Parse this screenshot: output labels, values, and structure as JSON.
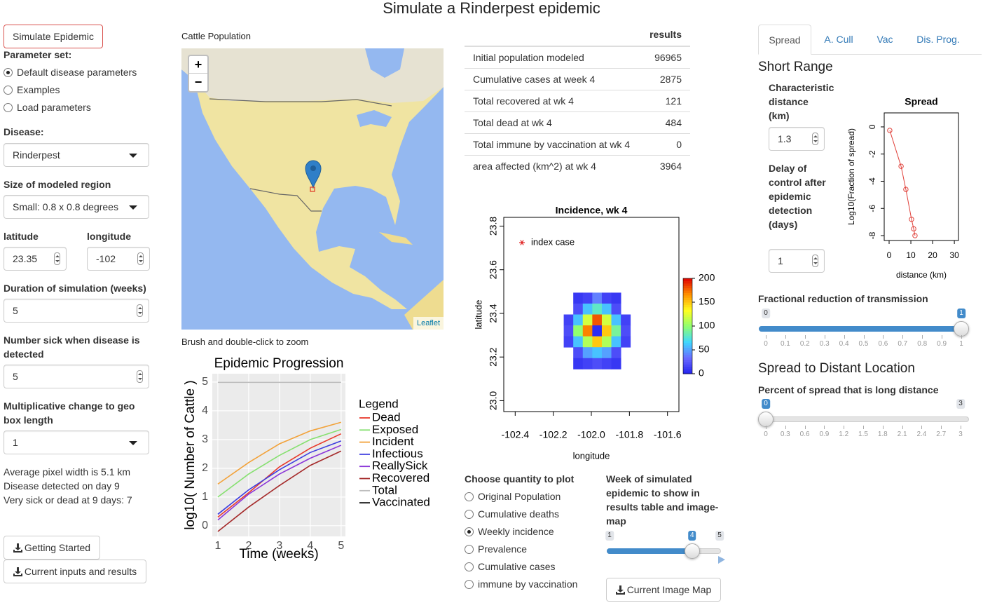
{
  "title": "Simulate a Rinderpest epidemic",
  "sidebar": {
    "simulate_button": "Simulate Epidemic",
    "parameter_set": {
      "label": "Parameter set:",
      "options": [
        "Default disease parameters",
        "Examples",
        "Load parameters"
      ],
      "selected": 0
    },
    "disease": {
      "label": "Disease:",
      "value": "Rinderpest"
    },
    "region_size": {
      "label": "Size of modeled region",
      "value": "Small: 0.8 x 0.8 degrees"
    },
    "latitude": {
      "label": "latitude",
      "value": 23.35
    },
    "longitude": {
      "label": "longitude",
      "value": -102
    },
    "duration": {
      "label": "Duration of simulation (weeks)",
      "value": 5
    },
    "number_sick": {
      "label": "Number sick when disease is detected",
      "value": 5
    },
    "geo_box": {
      "label": "Multiplicative change to geo box length",
      "value": "1"
    },
    "info": [
      "Average pixel width is 5.1 km",
      "Disease detected on day 9",
      "Very sick or dead at 9 days: 7"
    ],
    "buttons": [
      "Getting Started",
      "Current inputs and results"
    ]
  },
  "map": {
    "title": "Cattle Population",
    "zoom_in": "+",
    "zoom_out": "−",
    "attribution": "Leaflet",
    "hint": "Brush and double-click to zoom"
  },
  "results": {
    "header": "results",
    "rows": [
      {
        "label": "Initial population modeled",
        "value": 96965
      },
      {
        "label": "Cumulative cases at week 4",
        "value": 2875
      },
      {
        "label": "Total recovered at wk 4",
        "value": 121
      },
      {
        "label": "Total dead at wk 4",
        "value": 484
      },
      {
        "label": "Total immune by vaccination at wk 4",
        "value": 0
      },
      {
        "label": "area affected (km^2) at wk 4",
        "value": 3964
      }
    ]
  },
  "plot_controls": {
    "quantity": {
      "label": "Choose quantity to plot",
      "options": [
        "Original Population",
        "Cumulative deaths",
        "Weekly incidence",
        "Prevalence",
        "Cumulative cases",
        "immune by vaccination"
      ],
      "selected": 2
    },
    "week": {
      "label": "Week of simulated epidemic to show in results table and image-map",
      "min": 1,
      "max": 5,
      "value": 4
    },
    "button": "Current Image Map"
  },
  "settings_panel": {
    "tabs": [
      "Spread",
      "A. Cull",
      "Vac",
      "Dis. Prog."
    ],
    "active_tab": 0,
    "short_range": "Short Range",
    "characteristic_distance": {
      "label": "Characteristic distance (km)",
      "value": 1.3
    },
    "delay": {
      "label": "Delay of control after epidemic detection (days)",
      "value": 1
    },
    "fractional_reduction": {
      "label": "Fractional reduction of transmission",
      "min": 0,
      "max": 1,
      "value": 1,
      "ticks": [
        0,
        0.1,
        0.2,
        0.3,
        0.4,
        0.5,
        0.6,
        0.7,
        0.8,
        0.9,
        1
      ]
    },
    "distant": "Spread to Distant Location",
    "long_distance": {
      "label": "Percent of spread that is long distance",
      "min": 0,
      "max": 3,
      "value": 0,
      "ticks": [
        0,
        0.3,
        0.6,
        0.9,
        1.2,
        1.5,
        1.8,
        2.1,
        2.4,
        2.7,
        3
      ]
    }
  },
  "chart_data": [
    {
      "type": "line",
      "title": "Epidemic Progression",
      "x_label": "Time (weeks)",
      "y_label": "log10( Number of Cattle )",
      "legend_title": "Legend",
      "grid": true,
      "background": "#ebebeb",
      "x": [
        1,
        2,
        3,
        4,
        5
      ],
      "xlim": [
        0.82,
        5.14
      ],
      "ylim": [
        -0.37,
        5.29
      ],
      "xticks": [
        1,
        2,
        3,
        4,
        5
      ],
      "yticks": [
        0,
        1,
        2,
        3,
        4,
        5
      ],
      "series": [
        {
          "name": "Dead",
          "color": "#e8392b",
          "values": [
            0.3,
            1.15,
            2.05,
            2.7,
            3.2
          ]
        },
        {
          "name": "Exposed",
          "color": "#86e070",
          "values": [
            1.0,
            1.8,
            2.45,
            3.0,
            3.35
          ]
        },
        {
          "name": "Incident",
          "color": "#f2a23a",
          "values": [
            1.45,
            2.2,
            2.85,
            3.3,
            3.6
          ]
        },
        {
          "name": "Infectious",
          "color": "#3d3de0",
          "values": [
            0.4,
            1.25,
            1.95,
            2.55,
            2.95
          ]
        },
        {
          "name": "ReallySick",
          "color": "#8a35d8",
          "values": [
            0.2,
            1.1,
            1.8,
            2.35,
            2.8
          ]
        },
        {
          "name": "Recovered",
          "color": "#a52a2a",
          "values": [
            -0.2,
            0.65,
            1.4,
            2.1,
            2.6
          ]
        },
        {
          "name": "Total",
          "color": "#bdbdbd",
          "values": [
            4.99,
            4.99,
            4.99,
            4.99,
            4.99
          ]
        },
        {
          "name": "Vaccinated",
          "color": "#111111",
          "values": [
            null,
            null,
            null,
            null,
            null
          ]
        }
      ]
    },
    {
      "type": "heatmap",
      "title": "Incidence, wk 4",
      "x_label": "longitude",
      "y_label": "latitude",
      "legend": "index case",
      "x": [
        -102.12,
        -102.07,
        -102.02,
        -101.97,
        -101.92,
        -101.87,
        -101.82
      ],
      "y": [
        23.47,
        23.42,
        23.37,
        23.32,
        23.27,
        23.22,
        23.17
      ],
      "z": [
        [
          null,
          10,
          15,
          40,
          15,
          10,
          null
        ],
        [
          null,
          20,
          60,
          80,
          60,
          20,
          null
        ],
        [
          15,
          60,
          120,
          180,
          120,
          60,
          15
        ],
        [
          20,
          100,
          170,
          5,
          150,
          90,
          20
        ],
        [
          15,
          60,
          110,
          150,
          110,
          60,
          15
        ],
        [
          null,
          20,
          50,
          60,
          50,
          20,
          null
        ],
        [
          null,
          10,
          15,
          20,
          15,
          10,
          null
        ]
      ],
      "xlim": [
        -102.46,
        -101.54
      ],
      "ylim": [
        22.95,
        23.84
      ],
      "xticks": [
        -102.4,
        -102.2,
        {
          "value": -102,
          "label": "-102.0"
        },
        -101.8,
        -101.6
      ],
      "yticks": [
        {
          "value": 23,
          "label": "23.0"
        },
        23.2,
        23.4,
        23.6,
        23.8
      ],
      "zlim": [
        0,
        200
      ],
      "zticks": [
        0,
        50,
        100,
        150,
        200
      ],
      "colorscale": [
        "#2222ee",
        "#6a6aff",
        "#40d8ff",
        "#90ff70",
        "#ffff20",
        "#ff9000",
        "#e00000"
      ]
    },
    {
      "type": "line",
      "title": "Spread",
      "x_label": "distance (km)",
      "y_label": "Log10(Fraction of spread)",
      "markers": true,
      "color": "#e0413a",
      "x": [
        0.3,
        5.5,
        7.7,
        10.3,
        11.3,
        11.9
      ],
      "values": [
        -0.26,
        -2.9,
        -4.6,
        -6.8,
        -7.5,
        -8.0
      ],
      "xlim": [
        -2.26,
        31.9
      ],
      "ylim": [
        -8.36,
        1.03
      ],
      "xticks": [
        0,
        10,
        20,
        30
      ],
      "yticks": [
        0,
        -2,
        -4,
        -6,
        -8
      ]
    }
  ]
}
